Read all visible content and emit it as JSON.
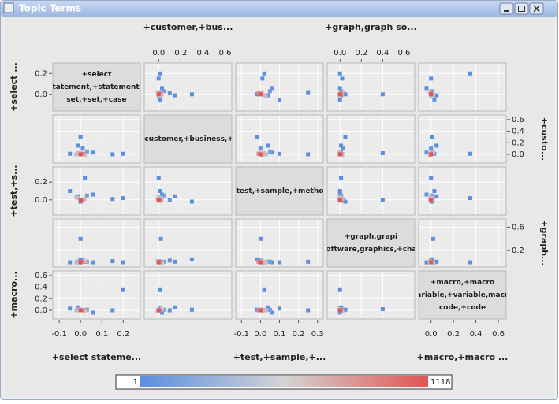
{
  "window": {
    "title": "Topic Terms"
  },
  "chart_data": {
    "type": "scatter_matrix",
    "variables": [
      {
        "x_title": "+select stateme...",
        "y_title": "+select ...",
        "x_axis_side": "bottom",
        "y_axis_side": "left",
        "diag_lines": [
          "+select",
          "statement,+statement,-",
          "set,+set,+case"
        ],
        "xlim": [
          -0.13,
          0.28
        ],
        "ylim": [
          -0.16,
          0.3
        ],
        "xticks": [
          -0.1,
          {
            "value": 0,
            "label": "0.0"
          },
          0.1,
          0.2
        ],
        "yticks": [
          {
            "value": 0,
            "label": "0.0"
          },
          0.2
        ],
        "values": [
          0.0,
          0.01,
          -0.01,
          0.02,
          0.0,
          -0.02,
          0.03,
          0.01,
          0.06,
          0.15,
          -0.05,
          0.0,
          0.02,
          0.0,
          0.2,
          -0.01
        ]
      },
      {
        "x_title": "+customer,+bus...",
        "y_title": "+custo...",
        "x_axis_side": "top",
        "y_axis_side": "right",
        "diag_lines": [
          "+customer,+business,+s"
        ],
        "xlim": [
          -0.13,
          0.66
        ],
        "ylim": [
          -0.15,
          0.68
        ],
        "xticks": [
          {
            "value": 0,
            "label": "0.0"
          },
          0.2,
          0.4,
          0.6
        ],
        "yticks": [
          {
            "value": 0,
            "label": "0.0"
          },
          0.2,
          0.4,
          0.6
        ],
        "values": [
          0.0,
          0.01,
          0.02,
          -0.01,
          0.03,
          0.0,
          0.05,
          0.1,
          0.03,
          0.0,
          0.01,
          0.3,
          0.0,
          0.02,
          0.01,
          0.15
        ]
      },
      {
        "x_title": "+test,+sample,+...",
        "y_title": "+test,+s...",
        "x_axis_side": "bottom",
        "y_axis_side": "left",
        "diag_lines": [
          "+test,+sample,+method"
        ],
        "xlim": [
          -0.13,
          0.33
        ],
        "ylim": [
          -0.17,
          0.37
        ],
        "xticks": [
          -0.1,
          {
            "value": 0,
            "label": "0.0"
          },
          0.1,
          0.2,
          0.3
        ],
        "yticks": [
          {
            "value": 0,
            "label": "0.0"
          },
          0.2
        ],
        "values": [
          0.0,
          -0.01,
          0.02,
          0.01,
          0.0,
          0.03,
          0.05,
          0.0,
          0.06,
          0.01,
          0.1,
          -0.02,
          0.25,
          0.0,
          0.02,
          0.04
        ]
      },
      {
        "x_title": "+graph,graph so...",
        "y_title": "+graph...",
        "x_axis_side": "top",
        "y_axis_side": "right",
        "diag_lines": [
          "+graph,grapi",
          "software,graphics,+char"
        ],
        "xlim": [
          -0.12,
          0.7
        ],
        "ylim": [
          -0.08,
          0.74
        ],
        "xticks": [
          {
            "value": 0,
            "label": "0.0"
          },
          0.2,
          0.4,
          0.6
        ],
        "yticks": [
          0.2,
          0.6
        ],
        "values": [
          0.0,
          0.01,
          0.0,
          0.02,
          -0.01,
          0.0,
          0.01,
          0.03,
          0.0,
          0.02,
          0.0,
          0.05,
          0.01,
          0.4,
          0.0,
          0.01
        ]
      },
      {
        "x_title": "+macro,+macro ...",
        "y_title": "+macro...",
        "x_axis_side": "bottom",
        "y_axis_side": "left",
        "diag_lines": [
          "+macro,+macro",
          "variable,+variable,macro",
          "code,+code"
        ],
        "xlim": [
          -0.11,
          0.67
        ],
        "ylim": [
          -0.15,
          0.68
        ],
        "xticks": [
          {
            "value": 0,
            "label": "0.0"
          },
          0.2,
          0.4,
          0.6
        ],
        "yticks": [
          {
            "value": 0,
            "label": "0.0"
          },
          0.2,
          0.4,
          0.6
        ],
        "values": [
          0.0,
          0.0,
          0.01,
          -0.01,
          0.02,
          0.0,
          0.01,
          0.0,
          -0.04,
          0.0,
          0.03,
          0.01,
          0.0,
          0.02,
          0.35,
          0.05
        ]
      }
    ],
    "counts": [
      1118,
      900,
      700,
      650,
      500,
      400,
      120,
      40,
      25,
      5,
      8,
      3,
      4,
      2,
      1,
      6
    ],
    "colorbar": {
      "lim": [
        1,
        1118
      ],
      "colors": [
        "#5b8ee0",
        "#d4d4d4",
        "#e05555"
      ]
    }
  }
}
